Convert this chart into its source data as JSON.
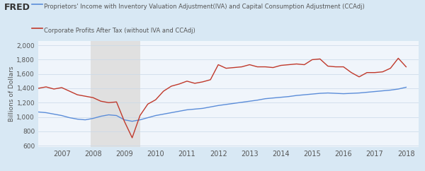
{
  "legend1": "Proprietors' Income with Inventory Valuation Adjustment(IVA) and Capital Consumption Adjustment (CCAdj)",
  "legend2": "Corporate Profits After Tax (without IVA and CCAdj)",
  "ylabel": "Billions of Dollars",
  "yticks": [
    600,
    800,
    1000,
    1200,
    1400,
    1600,
    1800,
    2000
  ],
  "ylim": [
    580,
    2060
  ],
  "xticks_labels": [
    "2007",
    "2008",
    "2009",
    "2010",
    "2011",
    "2012",
    "2013",
    "2014",
    "2015",
    "2016",
    "2017",
    "2018"
  ],
  "xticks_pos": [
    2007,
    2008,
    2009,
    2010,
    2011,
    2012,
    2013,
    2014,
    2015,
    2016,
    2017,
    2018
  ],
  "xlim_start": 2006.25,
  "xlim_end": 2018.4,
  "recession_start": 2007.92,
  "recession_end": 2009.5,
  "bg_color": "#d8e8f4",
  "plot_bg_color": "#f0f5fb",
  "recession_color": "#e0e0e0",
  "line1_color": "#5b8dd9",
  "line2_color": "#c0392b",
  "proprietors_x": [
    2006.25,
    2006.5,
    2006.75,
    2007.0,
    2007.25,
    2007.5,
    2007.75,
    2008.0,
    2008.25,
    2008.5,
    2008.75,
    2009.0,
    2009.25,
    2009.5,
    2009.75,
    2010.0,
    2010.25,
    2010.5,
    2010.75,
    2011.0,
    2011.25,
    2011.5,
    2011.75,
    2012.0,
    2012.25,
    2012.5,
    2012.75,
    2013.0,
    2013.25,
    2013.5,
    2013.75,
    2014.0,
    2014.25,
    2014.5,
    2014.75,
    2015.0,
    2015.25,
    2015.5,
    2015.75,
    2016.0,
    2016.25,
    2016.5,
    2016.75,
    2017.0,
    2017.25,
    2017.5,
    2017.75,
    2018.0
  ],
  "proprietors_y": [
    1070,
    1060,
    1040,
    1020,
    990,
    970,
    960,
    980,
    1010,
    1030,
    1020,
    960,
    940,
    960,
    990,
    1020,
    1040,
    1060,
    1080,
    1100,
    1110,
    1120,
    1140,
    1160,
    1175,
    1190,
    1205,
    1220,
    1235,
    1255,
    1265,
    1275,
    1285,
    1300,
    1310,
    1320,
    1330,
    1335,
    1330,
    1325,
    1330,
    1335,
    1345,
    1355,
    1365,
    1375,
    1390,
    1415
  ],
  "profits_x": [
    2006.25,
    2006.5,
    2006.75,
    2007.0,
    2007.25,
    2007.5,
    2007.75,
    2008.0,
    2008.25,
    2008.5,
    2008.75,
    2009.0,
    2009.25,
    2009.5,
    2009.75,
    2010.0,
    2010.25,
    2010.5,
    2010.75,
    2011.0,
    2011.25,
    2011.5,
    2011.75,
    2012.0,
    2012.25,
    2012.5,
    2012.75,
    2013.0,
    2013.25,
    2013.5,
    2013.75,
    2014.0,
    2014.25,
    2014.5,
    2014.75,
    2015.0,
    2015.25,
    2015.5,
    2015.75,
    2016.0,
    2016.25,
    2016.5,
    2016.75,
    2017.0,
    2017.25,
    2017.5,
    2017.75,
    2018.0
  ],
  "profits_y": [
    1400,
    1420,
    1390,
    1410,
    1360,
    1310,
    1290,
    1270,
    1220,
    1200,
    1210,
    940,
    710,
    1020,
    1180,
    1240,
    1360,
    1430,
    1460,
    1500,
    1470,
    1490,
    1520,
    1730,
    1680,
    1690,
    1700,
    1730,
    1700,
    1700,
    1690,
    1720,
    1730,
    1740,
    1730,
    1800,
    1810,
    1710,
    1700,
    1700,
    1620,
    1560,
    1620,
    1620,
    1630,
    1680,
    1820,
    1700
  ]
}
